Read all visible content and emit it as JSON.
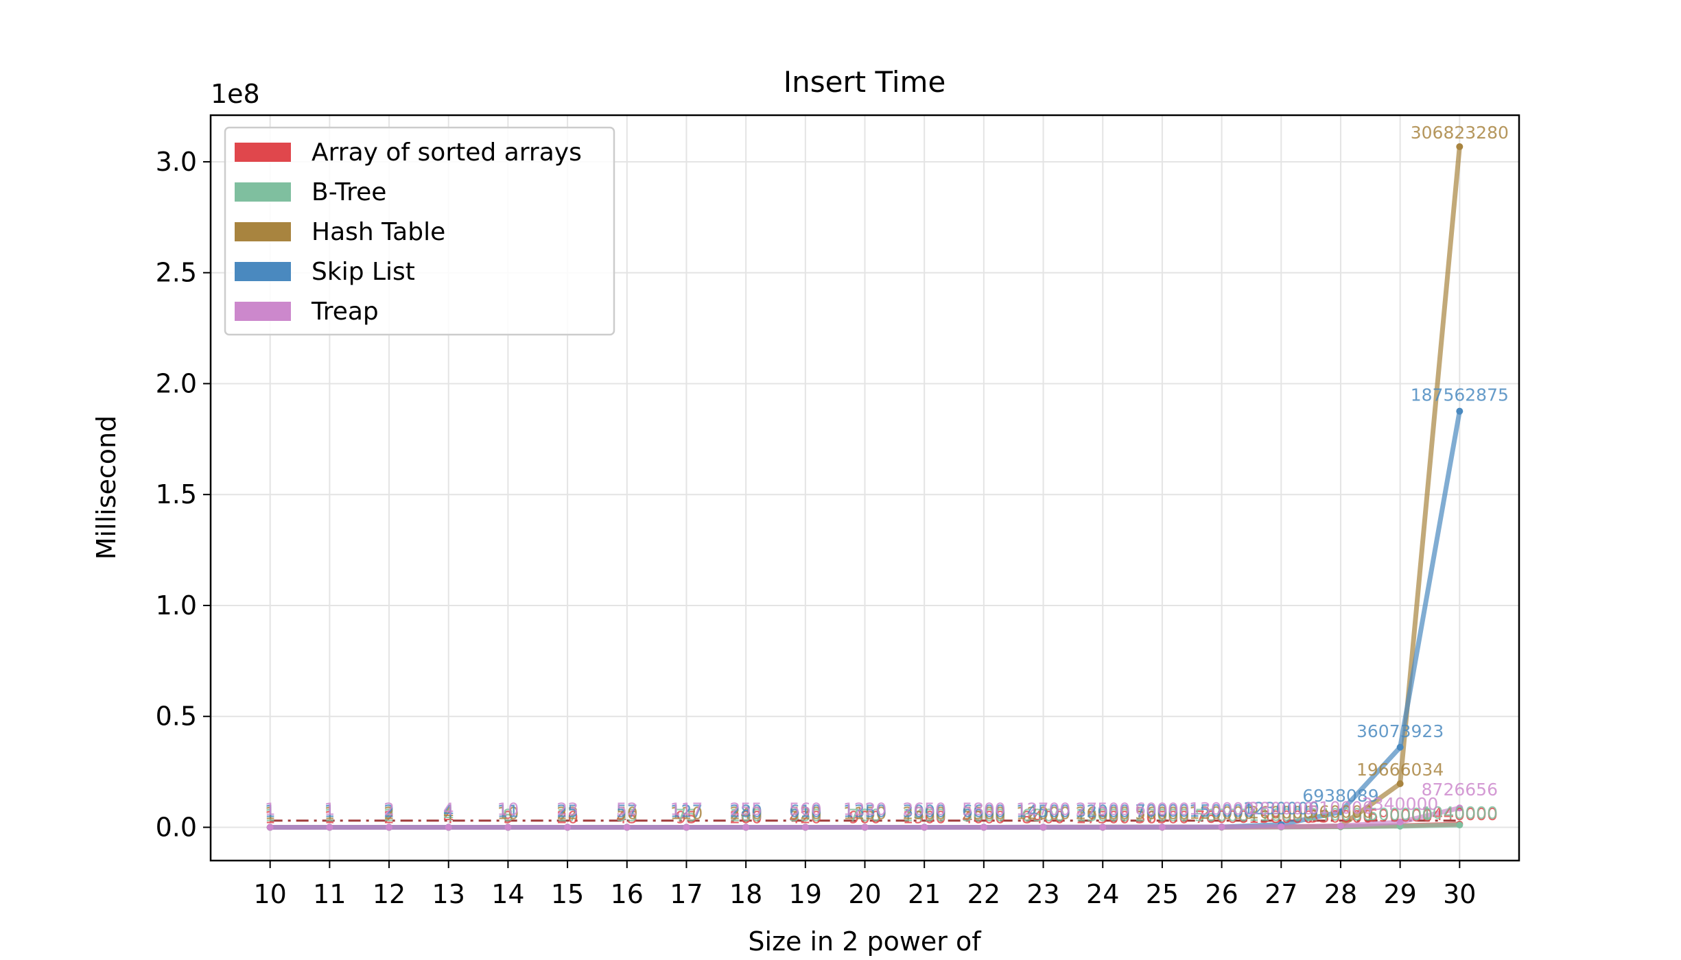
{
  "chart_data": {
    "type": "line",
    "title": "Insert Time",
    "xlabel": "Size in 2 power of",
    "ylabel": "Millisecond",
    "y_offset_label": "1e8",
    "y_scale": 100000000,
    "x": [
      10,
      11,
      12,
      13,
      14,
      15,
      16,
      17,
      18,
      19,
      20,
      21,
      22,
      23,
      24,
      25,
      26,
      27,
      28,
      29,
      30
    ],
    "xlim": [
      9,
      31
    ],
    "ylim": [
      -15000000,
      321000000
    ],
    "yticks": [
      0,
      50000000,
      100000000,
      150000000,
      200000000,
      250000000,
      300000000
    ],
    "ytick_labels": [
      "0.0",
      "0.5",
      "1.0",
      "1.5",
      "2.0",
      "2.5",
      "3.0"
    ],
    "grid": true,
    "legend_position": "top-left",
    "reference_line_value": 3000000,
    "reference_line_color": "#a03c3c",
    "series": [
      {
        "name": "Array of sorted arrays",
        "color": "#e0474c",
        "values": [
          1,
          1,
          2,
          4,
          9,
          20,
          45,
          95,
          200,
          420,
          900,
          1900,
          4000,
          8400,
          17500,
          36500,
          76000,
          158000,
          330000,
          690000,
          1440000
        ],
        "labels": {
          "30": "1440000"
        }
      },
      {
        "name": "B-Tree",
        "color": "#7fbf9f",
        "values": [
          1,
          1,
          2,
          4,
          8,
          17,
          35,
          75,
          160,
          330,
          700,
          1450,
          3000,
          6300,
          13000,
          27000,
          56000,
          116000,
          240000,
          500000,
          1040000
        ],
        "labels": {
          "30": "1040000"
        }
      },
      {
        "name": "Hash Table",
        "color": "#a8843f",
        "values": [
          1,
          1,
          2,
          4,
          10,
          22,
          50,
          110,
          240,
          520,
          1150,
          2500,
          5500,
          12000,
          26000,
          56000,
          120000,
          260000,
          560000,
          19666034,
          306823280
        ],
        "labels": {
          "29": "19666034",
          "30": "306823280"
        }
      },
      {
        "name": "Skip List",
        "color": "#4a89bf",
        "values": [
          1,
          1,
          2,
          4,
          11,
          25,
          57,
          127,
          280,
          610,
          1350,
          3000,
          6600,
          14500,
          32000,
          70000,
          150000,
          1230000,
          6938089,
          36073923,
          187562875
        ],
        "labels": {
          "27": "1230000",
          "28": "6938089",
          "29": "36073923",
          "30": "187562875"
        }
      },
      {
        "name": "Treap",
        "color": "#cc88cc",
        "values": [
          1,
          1,
          2,
          4,
          10,
          23,
          52,
          117,
          255,
          560,
          1220,
          2650,
          5800,
          12700,
          27500,
          60000,
          130000,
          280000,
          610000,
          2340000,
          8726656
        ],
        "labels": {
          "29": "2340000",
          "30": "8726656"
        }
      }
    ]
  }
}
